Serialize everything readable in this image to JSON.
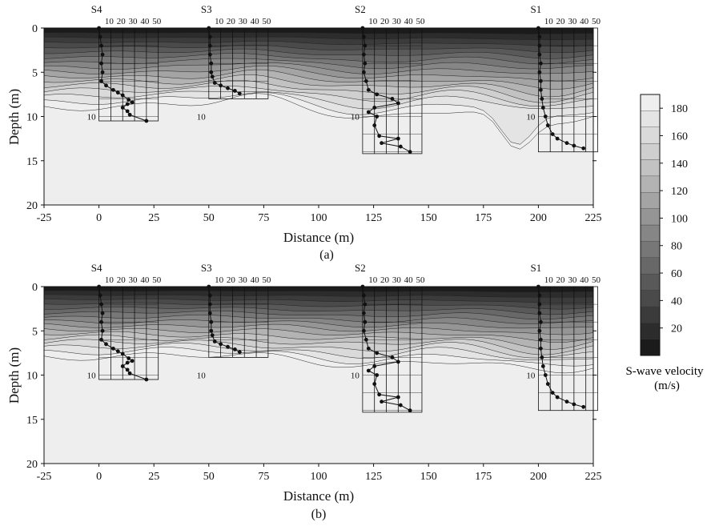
{
  "chart_data": [
    {
      "panel": "(a)",
      "type": "heatmap",
      "xlabel": "Distance (m)",
      "ylabel": "Depth (m)",
      "xlim": [
        -25,
        225
      ],
      "ylim": [
        0,
        20
      ],
      "x_ticks": [
        "-25",
        "0",
        "25",
        "50",
        "75",
        "100",
        "125",
        "150",
        "175",
        "200",
        "225"
      ],
      "y_ticks": [
        "0",
        "5",
        "10",
        "15",
        "20"
      ],
      "stations": [
        {
          "name": "S4",
          "distance": 0,
          "box_bottom_depth": 10.5,
          "profile": [
            [
              0,
              0
            ],
            [
              1,
              1
            ],
            [
              2,
              2
            ],
            [
              3,
              3
            ],
            [
              2,
              4
            ],
            [
              3,
              5
            ],
            [
              2,
              6
            ],
            [
              6,
              6.5
            ],
            [
              12,
              7
            ],
            [
              16,
              7.3
            ],
            [
              20,
              7.6
            ],
            [
              25,
              8.1
            ],
            [
              28,
              8.4
            ],
            [
              24,
              8.6
            ],
            [
              20,
              9
            ],
            [
              24,
              9.4
            ],
            [
              26,
              9.8
            ],
            [
              40,
              10.5
            ]
          ]
        },
        {
          "name": "S3",
          "distance": 50,
          "box_bottom_depth": 8.0,
          "profile": [
            [
              0,
              0
            ],
            [
              1,
              1
            ],
            [
              1,
              2
            ],
            [
              1,
              3
            ],
            [
              2,
              4
            ],
            [
              2,
              5
            ],
            [
              3,
              5.5
            ],
            [
              5,
              6.2
            ],
            [
              10,
              6.5
            ],
            [
              16,
              6.8
            ],
            [
              22,
              7.1
            ],
            [
              26,
              7.4
            ]
          ]
        },
        {
          "name": "S2",
          "distance": 120,
          "box_bottom_depth": 14.2,
          "profile": [
            [
              0,
              0
            ],
            [
              1,
              1
            ],
            [
              2,
              2
            ],
            [
              1,
              3
            ],
            [
              2,
              4
            ],
            [
              1,
              5
            ],
            [
              3,
              6
            ],
            [
              5,
              7
            ],
            [
              12,
              7.5
            ],
            [
              25,
              8
            ],
            [
              30,
              8.5
            ],
            [
              10,
              9
            ],
            [
              5,
              9.5
            ],
            [
              12,
              10
            ],
            [
              10,
              11
            ],
            [
              14,
              12.2
            ],
            [
              30,
              12.5
            ],
            [
              16,
              13
            ],
            [
              32,
              13.4
            ],
            [
              40,
              14
            ]
          ]
        },
        {
          "name": "S1",
          "distance": 200,
          "box_bottom_depth": 14.0,
          "profile": [
            [
              0,
              0
            ],
            [
              1,
              1
            ],
            [
              1,
              2
            ],
            [
              1,
              3
            ],
            [
              2,
              4
            ],
            [
              1,
              5
            ],
            [
              2,
              6
            ],
            [
              2,
              7
            ],
            [
              3,
              8
            ],
            [
              4,
              9
            ],
            [
              6,
              10
            ],
            [
              8,
              11
            ],
            [
              12,
              12
            ],
            [
              16,
              12.5
            ],
            [
              24,
              13
            ],
            [
              30,
              13.3
            ],
            [
              38,
              13.6
            ]
          ]
        }
      ],
      "profile_scale_labels": [
        "10",
        "20",
        "30",
        "40",
        "50"
      ],
      "box_depth_label": "10"
    },
    {
      "panel": "(b)",
      "type": "heatmap",
      "xlabel": "Distance (m)",
      "ylabel": "Depth (m)",
      "xlim": [
        -25,
        225
      ],
      "ylim": [
        0,
        20
      ],
      "x_ticks": [
        "-25",
        "0",
        "25",
        "50",
        "75",
        "100",
        "125",
        "150",
        "175",
        "200",
        "225"
      ],
      "y_ticks": [
        "0",
        "5",
        "10",
        "15",
        "20"
      ],
      "stations": [
        {
          "name": "S4",
          "distance": 0,
          "box_bottom_depth": 10.5
        },
        {
          "name": "S3",
          "distance": 50,
          "box_bottom_depth": 8.0
        },
        {
          "name": "S2",
          "distance": 120,
          "box_bottom_depth": 14.2
        },
        {
          "name": "S1",
          "distance": 200,
          "box_bottom_depth": 14.0
        }
      ],
      "profile_scale_labels": [
        "10",
        "20",
        "30",
        "40",
        "50"
      ],
      "box_depth_label": "10"
    }
  ],
  "colorbar": {
    "title_line1": "S-wave velocity",
    "title_line2": "(m/s)",
    "ticks": [
      "20",
      "40",
      "60",
      "80",
      "100",
      "120",
      "140",
      "160",
      "180"
    ],
    "range": [
      0,
      190
    ],
    "colors": [
      "#1b1b1b",
      "#2c2c2c",
      "#3b3b3b",
      "#4a4a4a",
      "#595959",
      "#686868",
      "#777777",
      "#868686",
      "#959595",
      "#a4a4a4",
      "#b3b3b3",
      "#c2c2c2",
      "#cfcfcf",
      "#dadada",
      "#e4e4e4",
      "#eeeeee"
    ]
  }
}
